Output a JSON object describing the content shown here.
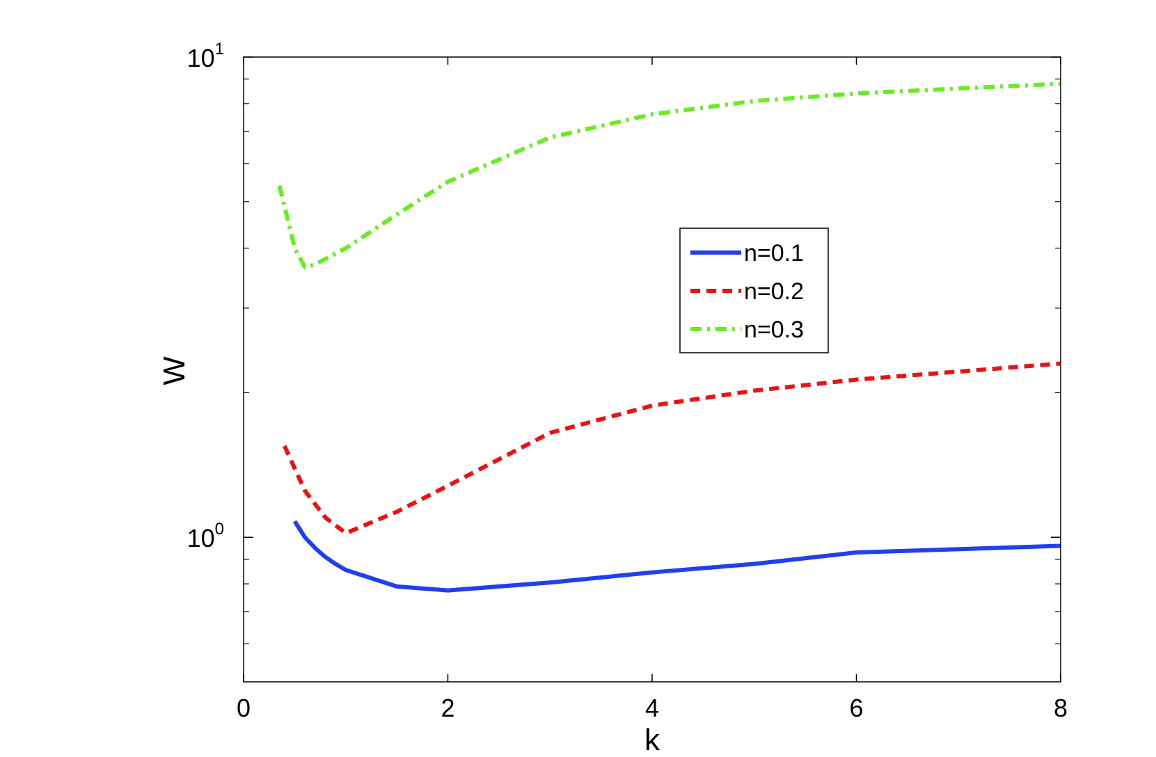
{
  "chart_data": {
    "type": "line",
    "title": "",
    "xlabel": "k",
    "ylabel": "W",
    "xlim": [
      0,
      8
    ],
    "ylim": [
      0.5,
      10
    ],
    "yscale": "log",
    "grid": false,
    "legend_position": "center-right",
    "x_ticks": [
      "0",
      "2",
      "4",
      "6",
      "8"
    ],
    "y_ticks": [
      {
        "base": "10",
        "exp": "0"
      },
      {
        "base": "10",
        "exp": "1"
      }
    ],
    "series": [
      {
        "name": "n=0.1",
        "color": "#1f3ff0",
        "style": "solid",
        "x": [
          0.5,
          0.6,
          0.7,
          0.8,
          0.9,
          1.0,
          1.5,
          2.0,
          3.0,
          4.0,
          5.0,
          6.0,
          8.0
        ],
        "y": [
          1.08,
          1.0,
          0.95,
          0.91,
          0.88,
          0.855,
          0.79,
          0.775,
          0.805,
          0.845,
          0.88,
          0.93,
          0.96
        ]
      },
      {
        "name": "n=0.2",
        "color": "#ee1111",
        "style": "dashed",
        "x": [
          0.4,
          0.6,
          0.8,
          1.0,
          1.5,
          2.0,
          3.0,
          4.0,
          5.0,
          6.0,
          8.0
        ],
        "y": [
          1.55,
          1.25,
          1.1,
          1.02,
          1.13,
          1.28,
          1.65,
          1.88,
          2.02,
          2.13,
          2.3
        ]
      },
      {
        "name": "n=0.3",
        "color": "#66ee22",
        "style": "dashdot",
        "x": [
          0.35,
          0.5,
          0.6,
          0.7,
          1.0,
          1.5,
          2.0,
          3.0,
          4.0,
          5.0,
          6.0,
          7.0,
          8.0
        ],
        "y": [
          5.4,
          4.0,
          3.65,
          3.7,
          4.0,
          4.7,
          5.5,
          6.8,
          7.6,
          8.1,
          8.4,
          8.6,
          8.8
        ]
      }
    ]
  }
}
